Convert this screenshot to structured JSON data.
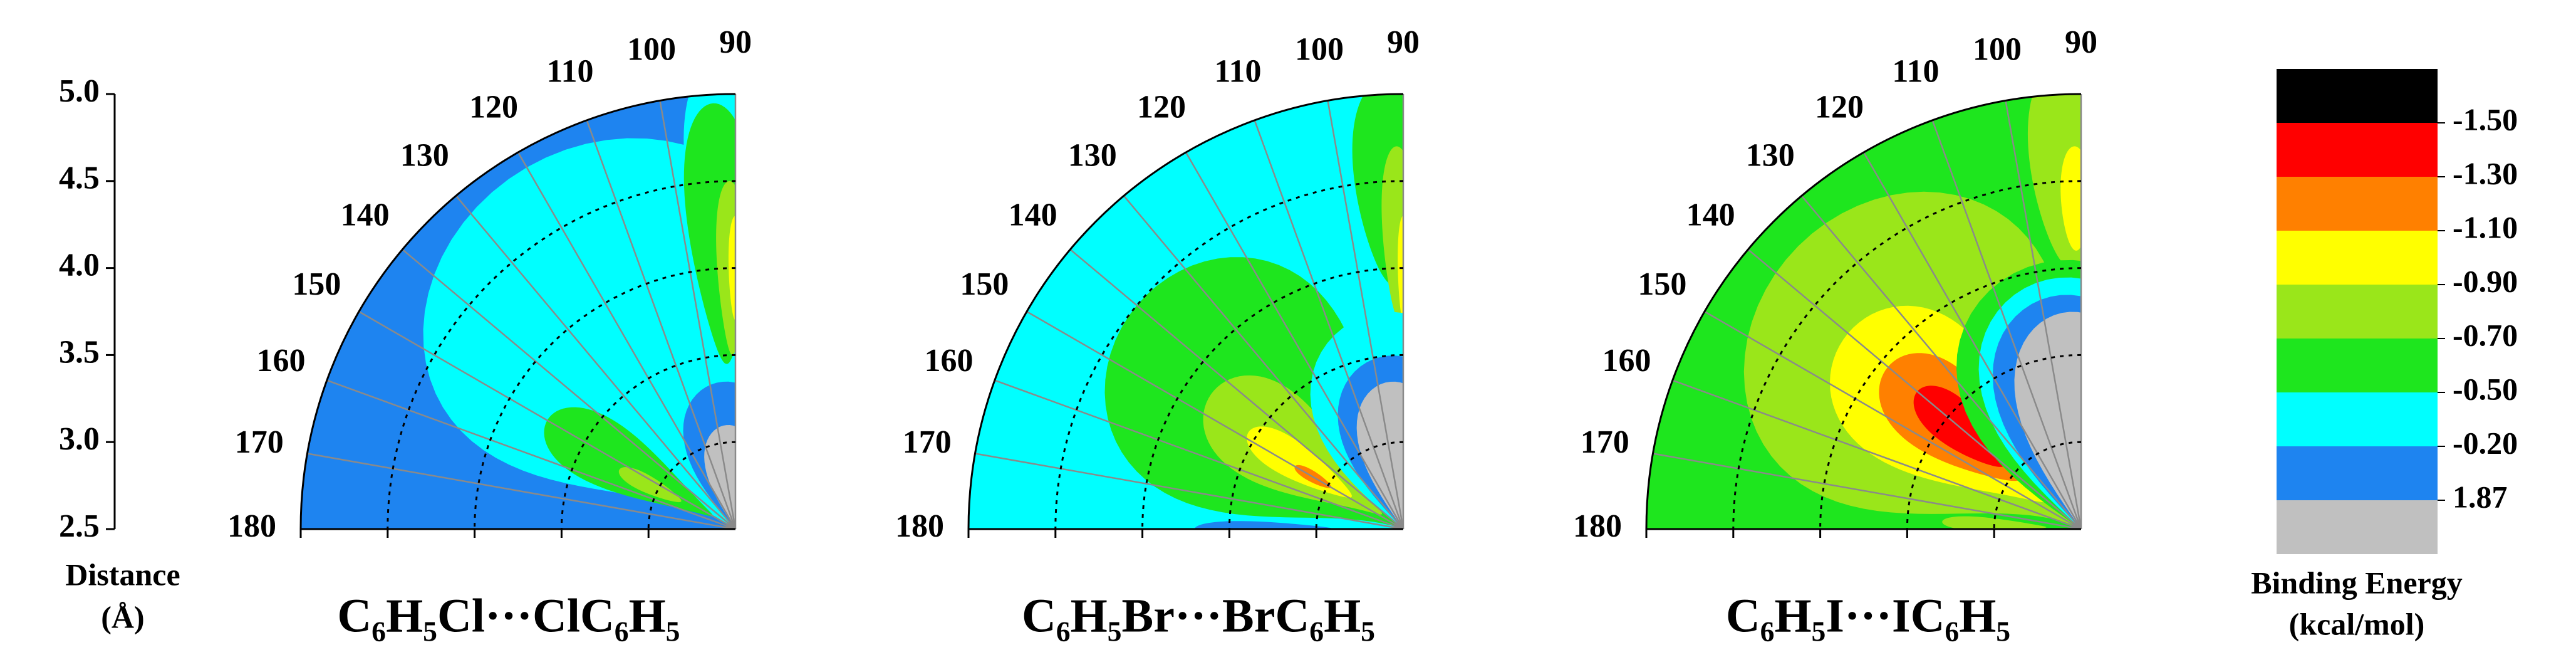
{
  "chart_data": [
    {
      "type": "polar-contour",
      "title": "C₆H₅Cl···ClC₆H₅",
      "thetalim": [
        90,
        180
      ],
      "thetaticks": [
        90,
        100,
        110,
        120,
        130,
        140,
        150,
        160,
        170,
        180
      ],
      "rlim": [
        2.5,
        5
      ],
      "rticks": [
        2.5,
        {
          "value": 3,
          "label": "3.0"
        },
        3.5,
        {
          "value": 4,
          "label": "4.0"
        },
        4.5,
        {
          "value": 5,
          "label": "5.0"
        }
      ],
      "rlabel": [
        "Distance",
        "(Å)"
      ]
    },
    {
      "type": "polar-contour",
      "title": "C₆H₅Br···BrC₆H₅",
      "thetalim": [
        90,
        180
      ],
      "thetaticks": [
        90,
        100,
        110,
        120,
        130,
        140,
        150,
        160,
        170,
        180
      ],
      "rlim": [
        2.5,
        5
      ],
      "rticks": [
        2.5,
        3,
        3.5,
        4,
        4.5,
        5
      ]
    },
    {
      "type": "polar-contour",
      "title": "C₆H₅I···IC₆H₅",
      "thetalim": [
        90,
        180
      ],
      "thetaticks": [
        90,
        100,
        110,
        120,
        130,
        140,
        150,
        160,
        170,
        180
      ],
      "rlim": [
        2.5,
        5
      ],
      "rticks": [
        2.5,
        3,
        3.5,
        4,
        4.5,
        5
      ]
    },
    {
      "type": "colorbar",
      "title": [
        "Binding Energy",
        "(kcal/mol)"
      ],
      "ticks": [
        {
          "value": -1.5,
          "label": "-1.50"
        },
        {
          "value": -1.3,
          "label": "-1.30"
        },
        {
          "value": -1.1,
          "label": "-1.10"
        },
        {
          "value": -0.9,
          "label": "-0.90"
        },
        {
          "value": -0.7,
          "label": "-0.70"
        },
        {
          "value": -0.5,
          "label": "-0.50"
        },
        {
          "value": -0.2,
          "label": "-0.20"
        },
        1.87
      ],
      "colors": [
        "#000000",
        "#ff0000",
        "#ff8000",
        "#ffff00",
        "#9ae61a",
        "#1ee61e",
        "#00ffff",
        "#1e84f0",
        "#c0c0c0"
      ]
    }
  ]
}
